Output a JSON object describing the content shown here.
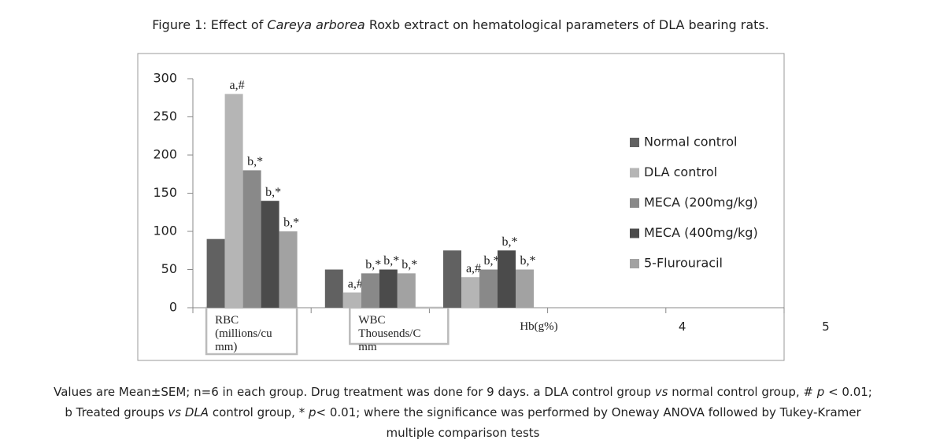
{
  "chart_data": {
    "type": "bar",
    "title": [
      "Figure 1: Effect of ",
      "Careya arborea",
      " Roxb extract on hematological parameters of DLA bearing rats."
    ],
    "categories": [
      "RBC (millions/cu mm)",
      "WBC Thousends/C mm",
      "Hb(g%)",
      "4",
      "5"
    ],
    "series": [
      {
        "name": "Normal control",
        "color": "#616161",
        "values": [
          90,
          50,
          75,
          null,
          null
        ]
      },
      {
        "name": "DLA control",
        "color": "#b5b5b5",
        "values": [
          280,
          20,
          40,
          null,
          null
        ],
        "value_labels": [
          "a,#",
          "a,#",
          "a,#",
          null,
          null
        ]
      },
      {
        "name": "MECA (200mg/kg)",
        "color": "#898989",
        "values": [
          180,
          45,
          50,
          null,
          null
        ],
        "value_labels": [
          "b,*",
          "b,*",
          "b,*",
          null,
          null
        ]
      },
      {
        "name": "MECA (400mg/kg)",
        "color": "#4b4b4b",
        "values": [
          140,
          50,
          75,
          null,
          null
        ],
        "value_labels": [
          "b,*",
          "b,*",
          "b,*",
          null,
          null
        ]
      },
      {
        "name": "5-Flurouracil",
        "color": "#a2a2a2",
        "values": [
          100,
          45,
          50,
          null,
          null
        ],
        "value_labels": [
          "b,*",
          "b,*",
          "b,*",
          null,
          null
        ]
      }
    ],
    "ylim": [
      0,
      300
    ],
    "yticks": [
      0,
      50,
      100,
      150,
      200,
      250,
      300
    ],
    "grid": false,
    "legend": "right",
    "footnote": [
      [
        "Values are Mean±SEM; n=6 in each group. Drug treatment was done for 9 days. a DLA control group ",
        "vs",
        " normal control group, # ",
        "p",
        " < 0.01;"
      ],
      [
        "b Treated groups ",
        "vs",
        " ",
        "DLA",
        " control group, * ",
        "p",
        "< 0.01; where the significance was performed by Oneway ANOVA followed by Tukey-Kramer"
      ],
      [
        "multiple comparison tests"
      ]
    ]
  }
}
